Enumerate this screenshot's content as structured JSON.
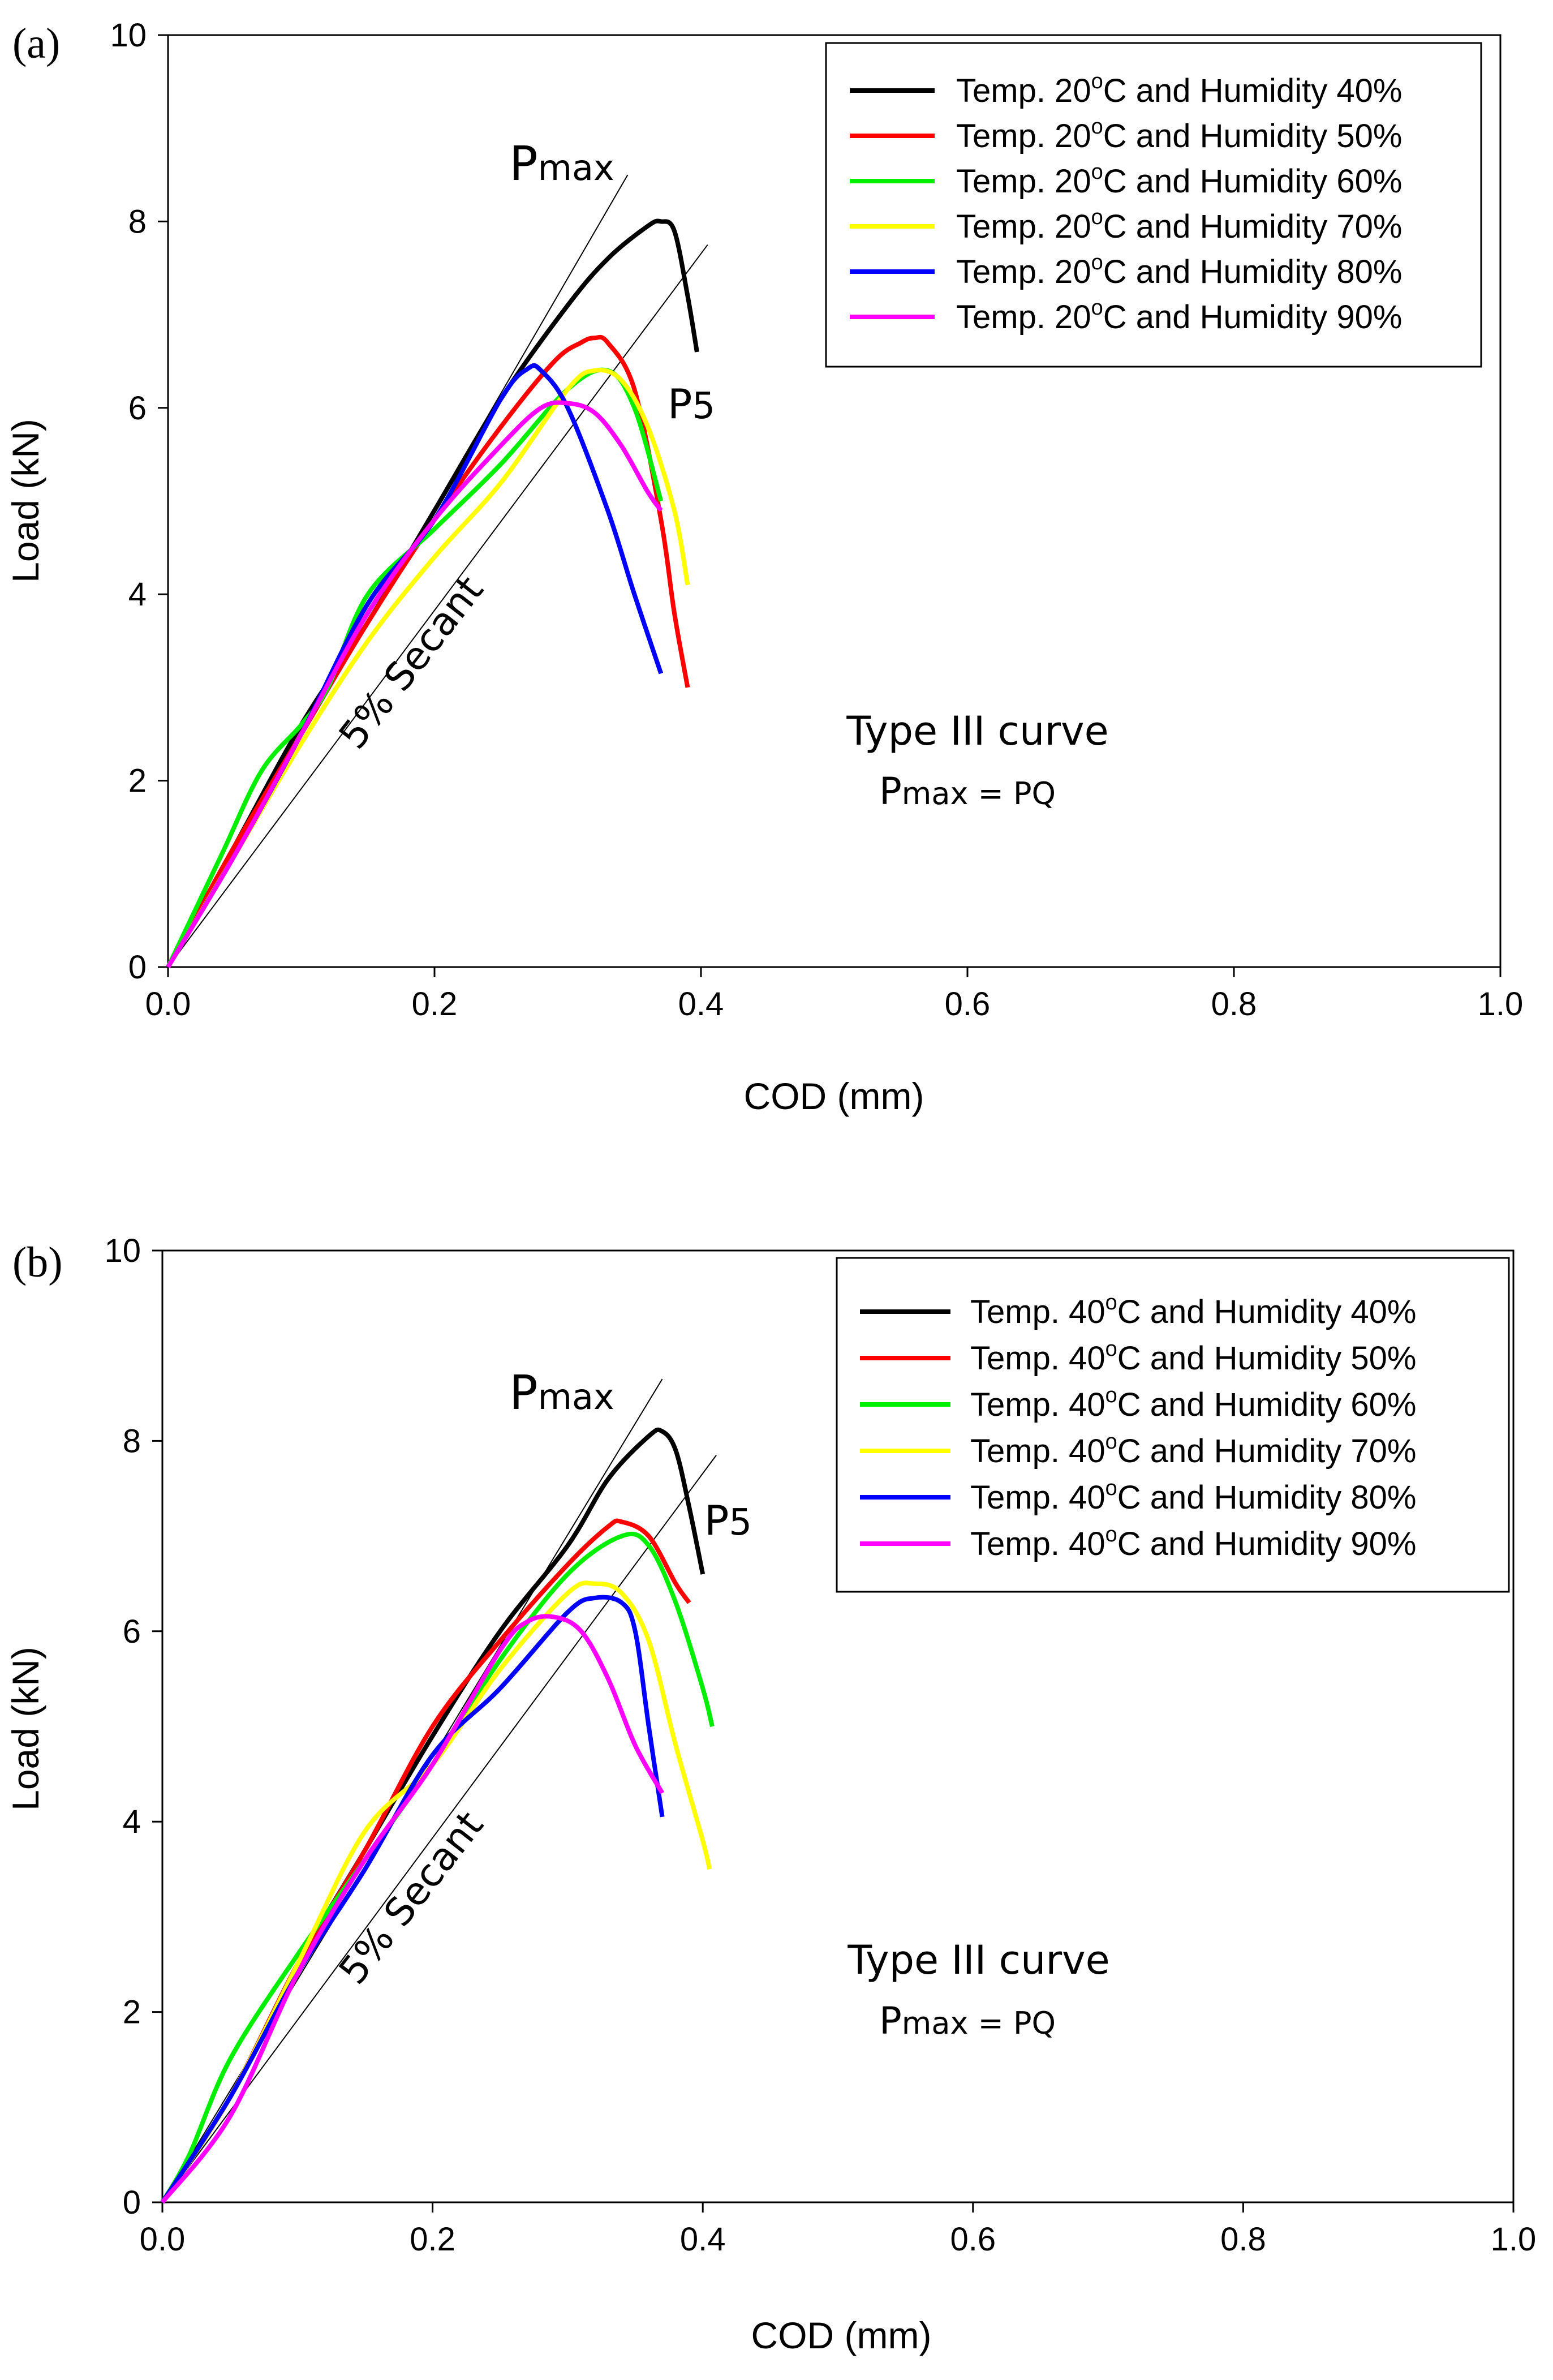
{
  "chart_data": [
    {
      "type": "line",
      "panel_label": "(a)",
      "xlabel": "COD (mm)",
      "ylabel": "Load (kN)",
      "xlim": [
        0,
        1.0
      ],
      "ylim": [
        0,
        10
      ],
      "xticks": [
        "0.0",
        "0.2",
        "0.4",
        "0.6",
        "0.8",
        "1.0"
      ],
      "yticks": [
        "0",
        "2",
        "4",
        "6",
        "8",
        "10"
      ],
      "legend_position": "top-right",
      "series": [
        {
          "name": "Temp. 20°C and Humidity 40%",
          "legend_prefix": "Temp. 20",
          "legend_sup": "o",
          "legend_suffix": "C and Humidity 40%",
          "color": "#000000",
          "x": [
            0,
            0.05,
            0.1,
            0.15,
            0.2,
            0.25,
            0.3,
            0.33,
            0.36,
            0.37,
            0.38,
            0.39,
            0.397
          ],
          "y": [
            0,
            1.3,
            2.6,
            3.7,
            4.9,
            6.1,
            7.1,
            7.6,
            7.95,
            8.0,
            7.9,
            7.2,
            6.6
          ]
        },
        {
          "name": "Temp. 20°C and Humidity 50%",
          "legend_prefix": "Temp. 20",
          "legend_sup": "o",
          "legend_suffix": "C and Humidity 50%",
          "color": "#ff0000",
          "x": [
            0,
            0.05,
            0.1,
            0.15,
            0.2,
            0.25,
            0.29,
            0.31,
            0.32,
            0.33,
            0.35,
            0.37,
            0.38,
            0.39
          ],
          "y": [
            0,
            1.3,
            2.5,
            3.7,
            4.8,
            5.8,
            6.5,
            6.7,
            6.75,
            6.7,
            6.2,
            4.8,
            3.8,
            3.0
          ]
        },
        {
          "name": "Temp. 20°C and Humidity 60%",
          "legend_prefix": "Temp. 20",
          "legend_sup": "o",
          "legend_suffix": "C and Humidity 60%",
          "color": "#00ee00",
          "x": [
            0,
            0.04,
            0.07,
            0.1,
            0.12,
            0.15,
            0.2,
            0.25,
            0.3,
            0.33,
            0.35,
            0.37
          ],
          "y": [
            0,
            1.2,
            2.1,
            2.6,
            3.0,
            4.0,
            4.7,
            5.4,
            6.2,
            6.4,
            6.0,
            5.0
          ]
        },
        {
          "name": "Temp. 20°C and Humidity 70%",
          "legend_prefix": "Temp. 20",
          "legend_sup": "o",
          "legend_suffix": "C and Humidity 70%",
          "color": "#ffff00",
          "x": [
            0,
            0.05,
            0.1,
            0.15,
            0.2,
            0.25,
            0.3,
            0.32,
            0.34,
            0.36,
            0.38,
            0.39
          ],
          "y": [
            0,
            1.2,
            2.4,
            3.5,
            4.4,
            5.2,
            6.2,
            6.4,
            6.3,
            5.8,
            4.9,
            4.1
          ]
        },
        {
          "name": "Temp. 20°C and Humidity 80%",
          "legend_prefix": "Temp. 20",
          "legend_sup": "o",
          "legend_suffix": "C and Humidity 80%",
          "color": "#0000ff",
          "x": [
            0,
            0.05,
            0.1,
            0.15,
            0.2,
            0.25,
            0.27,
            0.28,
            0.3,
            0.33,
            0.35,
            0.37
          ],
          "y": [
            0,
            1.2,
            2.5,
            3.9,
            4.8,
            6.1,
            6.42,
            6.4,
            6.0,
            4.9,
            4.0,
            3.15
          ]
        },
        {
          "name": "Temp. 20°C and Humidity 90%",
          "legend_prefix": "Temp. 20",
          "legend_sup": "o",
          "legend_suffix": "C and Humidity 90%",
          "color": "#ff00ff",
          "x": [
            0,
            0.05,
            0.1,
            0.15,
            0.2,
            0.25,
            0.28,
            0.3,
            0.32,
            0.34,
            0.36,
            0.37
          ],
          "y": [
            0,
            1.2,
            2.5,
            3.8,
            4.8,
            5.6,
            6.0,
            6.05,
            5.95,
            5.6,
            5.1,
            4.9
          ]
        }
      ],
      "reference_lines": [
        {
          "name": "tangent",
          "x": [
            0,
            0.345
          ],
          "y": [
            0,
            8.5
          ]
        },
        {
          "name": "5% secant",
          "x": [
            0,
            0.405
          ],
          "y": [
            0,
            7.75
          ]
        }
      ],
      "annotations": {
        "pmax_main": "P",
        "pmax_sub": "max",
        "p5_main": "P",
        "p5_sub": "5",
        "secant": "5% Secant",
        "curve_type": "Type III curve",
        "eq_main1": "P",
        "eq_sub1": "max",
        "eq_mid": " = P",
        "eq_sub2": "Q"
      }
    },
    {
      "type": "line",
      "panel_label": "(b)",
      "xlabel": "COD (mm)",
      "ylabel": "Load (kN)",
      "xlim": [
        0,
        1.0
      ],
      "ylim": [
        0,
        10
      ],
      "xticks": [
        "0.0",
        "0.2",
        "0.4",
        "0.6",
        "0.8",
        "1.0"
      ],
      "yticks": [
        "0",
        "2",
        "4",
        "6",
        "8",
        "10"
      ],
      "legend_position": "top-right",
      "series": [
        {
          "name": "Temp. 40°C and Humidity 40%",
          "legend_prefix": "Temp. 40",
          "legend_sup": "o",
          "legend_suffix": "C and Humidity 40%",
          "color": "#000000",
          "x": [
            0,
            0.05,
            0.1,
            0.15,
            0.2,
            0.25,
            0.3,
            0.33,
            0.36,
            0.37,
            0.38,
            0.39,
            0.4
          ],
          "y": [
            0,
            1.1,
            2.5,
            3.7,
            4.9,
            6.0,
            6.9,
            7.6,
            8.05,
            8.1,
            7.9,
            7.3,
            6.6
          ]
        },
        {
          "name": "Temp. 40°C and Humidity 50%",
          "legend_prefix": "Temp. 40",
          "legend_sup": "o",
          "legend_suffix": "C and Humidity 50%",
          "color": "#ff0000",
          "x": [
            0,
            0.05,
            0.1,
            0.15,
            0.2,
            0.25,
            0.3,
            0.33,
            0.34,
            0.36,
            0.38,
            0.39
          ],
          "y": [
            0,
            1.1,
            2.5,
            3.7,
            5.0,
            5.9,
            6.7,
            7.1,
            7.15,
            7.0,
            6.5,
            6.3
          ]
        },
        {
          "name": "Temp. 40°C and Humidity 60%",
          "legend_prefix": "Temp. 40",
          "legend_sup": "o",
          "legend_suffix": "C and Humidity 60%",
          "color": "#00ee00",
          "x": [
            0,
            0.02,
            0.05,
            0.1,
            0.15,
            0.2,
            0.25,
            0.3,
            0.34,
            0.36,
            0.38,
            0.4,
            0.407
          ],
          "y": [
            0,
            0.5,
            1.5,
            2.6,
            3.6,
            4.6,
            5.7,
            6.6,
            7.0,
            6.9,
            6.3,
            5.4,
            5.0
          ]
        },
        {
          "name": "Temp. 40°C and Humidity 70%",
          "legend_prefix": "Temp. 40",
          "legend_sup": "o",
          "legend_suffix": "C and Humidity 70%",
          "color": "#ffff00",
          "x": [
            0,
            0.05,
            0.1,
            0.15,
            0.2,
            0.25,
            0.3,
            0.32,
            0.34,
            0.36,
            0.38,
            0.4,
            0.405
          ],
          "y": [
            0,
            1.1,
            2.5,
            3.9,
            4.6,
            5.6,
            6.4,
            6.5,
            6.4,
            5.9,
            4.8,
            3.8,
            3.5
          ]
        },
        {
          "name": "Temp. 40°C and Humidity 80%",
          "legend_prefix": "Temp. 40",
          "legend_sup": "o",
          "legend_suffix": "C and Humidity 80%",
          "color": "#0000ff",
          "x": [
            0,
            0.05,
            0.1,
            0.15,
            0.2,
            0.25,
            0.3,
            0.32,
            0.34,
            0.35,
            0.36,
            0.37
          ],
          "y": [
            0,
            1.1,
            2.4,
            3.5,
            4.7,
            5.4,
            6.2,
            6.35,
            6.3,
            6.0,
            5.0,
            4.05
          ]
        },
        {
          "name": "Temp. 40°C and Humidity 90%",
          "legend_prefix": "Temp. 40",
          "legend_sup": "o",
          "legend_suffix": "C and Humidity 90%",
          "color": "#ff00ff",
          "x": [
            0,
            0.05,
            0.1,
            0.15,
            0.2,
            0.25,
            0.27,
            0.29,
            0.31,
            0.33,
            0.35,
            0.37
          ],
          "y": [
            0,
            0.9,
            2.4,
            3.6,
            4.6,
            5.8,
            6.1,
            6.15,
            6.0,
            5.5,
            4.8,
            4.3
          ]
        }
      ],
      "reference_lines": [
        {
          "name": "tangent",
          "x": [
            0,
            0.37
          ],
          "y": [
            0,
            8.65
          ]
        },
        {
          "name": "5% secant",
          "x": [
            0,
            0.41
          ],
          "y": [
            0,
            7.85
          ]
        }
      ],
      "annotations": {
        "pmax_main": "P",
        "pmax_sub": "max",
        "p5_main": "P",
        "p5_sub": "5",
        "secant": "5% Secant",
        "curve_type": "Type III curve",
        "eq_main1": "P",
        "eq_sub1": "max",
        "eq_mid": " = P",
        "eq_sub2": "Q"
      }
    }
  ]
}
